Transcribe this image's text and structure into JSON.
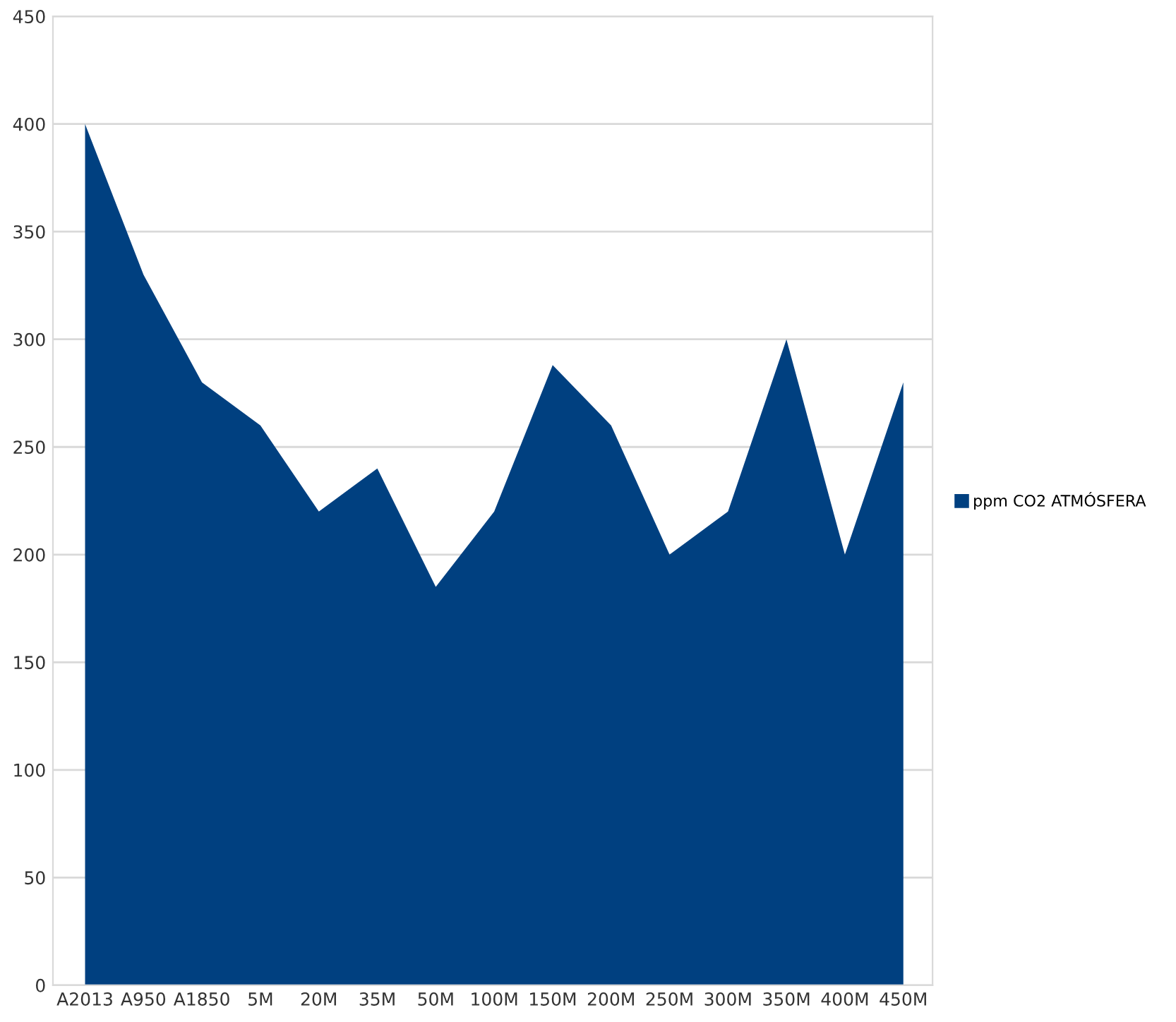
{
  "chart_data": {
    "type": "area",
    "categories": [
      "A2013",
      "A950",
      "A1850",
      "5M",
      "20M",
      "35M",
      "50M",
      "100M",
      "150M",
      "200M",
      "250M",
      "300M",
      "350M",
      "400M",
      "450M"
    ],
    "series": [
      {
        "name": "ppm CO2 ATMÓSFERA",
        "color": "#004080",
        "values": [
          400,
          330,
          280,
          260,
          220,
          240,
          185,
          220,
          288,
          260,
          200,
          220,
          300,
          200,
          280
        ]
      }
    ],
    "ylim": [
      0,
      450
    ],
    "yticks": [
      0,
      50,
      100,
      150,
      200,
      250,
      300,
      350,
      400,
      450
    ],
    "grid": "y",
    "legend": "right"
  }
}
